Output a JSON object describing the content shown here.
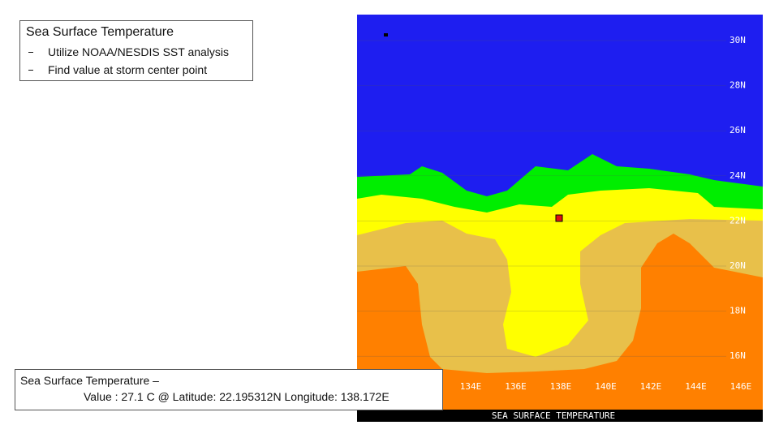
{
  "title_box": {
    "title": "Sea Surface Temperature",
    "bullets": [
      "Utilize NOAA/NESDIS SST analysis",
      "Find value at storm center point"
    ]
  },
  "map": {
    "latitude_labels": [
      "30N",
      "28N",
      "26N",
      "24N",
      "22N",
      "20N",
      "18N",
      "16N"
    ],
    "longitude_labels": [
      "134E",
      "136E",
      "138E",
      "140E",
      "142E",
      "144E",
      "146E"
    ],
    "footer": "SEA SURFACE TEMPERATURE"
  },
  "caption": {
    "line1": "Sea Surface Temperature –",
    "line2": "Value : 27.1 C @ Latitude: 22.195312N Longitude: 138.172E"
  }
}
